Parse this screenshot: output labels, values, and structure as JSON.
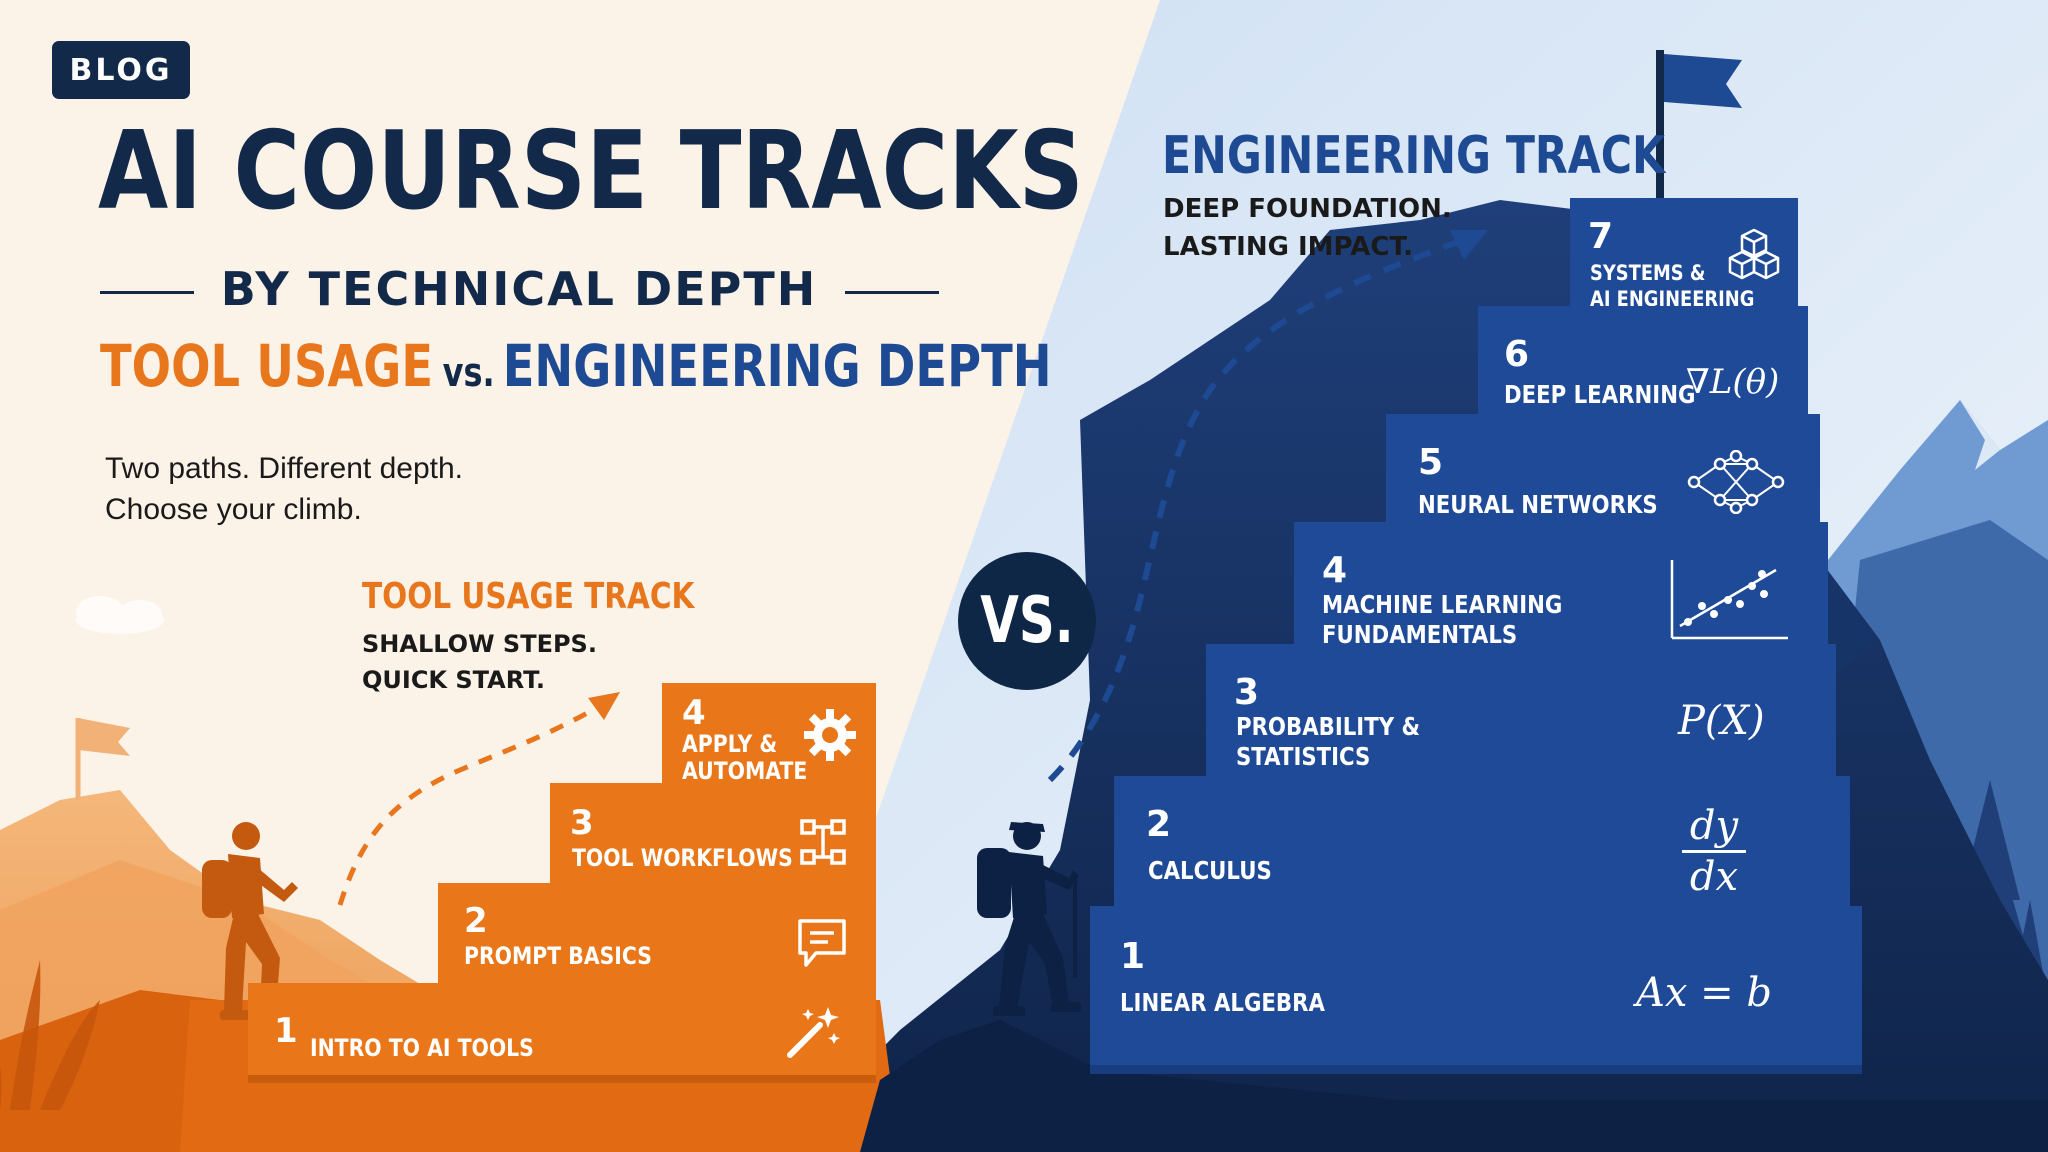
{
  "header": {
    "badge": "BLOG",
    "title": "AI COURSE TRACKS",
    "subtitle": "BY TECHNICAL DEPTH",
    "compare_left": "TOOL USAGE",
    "compare_vs": "vs.",
    "compare_right": "ENGINEERING DEPTH",
    "tagline_line1": "Two paths. Different depth.",
    "tagline_line2": "Choose your climb."
  },
  "tool_track": {
    "title": "TOOL USAGE TRACK",
    "sub_line1": "SHALLOW STEPS.",
    "sub_line2": "QUICK START.",
    "steps": [
      {
        "num": "1",
        "label": "INTRO TO AI TOOLS",
        "icon": "magic-wand-icon"
      },
      {
        "num": "2",
        "label": "PROMPT BASICS",
        "icon": "chat-bubble-icon"
      },
      {
        "num": "3",
        "label": "TOOL WORKFLOWS",
        "icon": "workflow-grid-icon"
      },
      {
        "num": "4",
        "label_line1": "APPLY &",
        "label_line2": "AUTOMATE",
        "icon": "gear-icon"
      }
    ]
  },
  "vs_badge": "VS.",
  "engineering_track": {
    "title": "ENGINEERING TRACK",
    "sub_line1": "DEEP FOUNDATION.",
    "sub_line2": "LASTING IMPACT.",
    "steps": [
      {
        "num": "1",
        "label": "LINEAR ALGEBRA",
        "formula": "Ax = b"
      },
      {
        "num": "2",
        "label": "CALCULUS",
        "formula_num": "dy",
        "formula_den": "dx"
      },
      {
        "num": "3",
        "label_line1": "PROBABILITY &",
        "label_line2": "STATISTICS",
        "formula": "P(X)"
      },
      {
        "num": "4",
        "label_line1": "MACHINE LEARNING",
        "label_line2": "FUNDAMENTALS",
        "icon": "scatter-plot-icon"
      },
      {
        "num": "5",
        "label": "NEURAL NETWORKS",
        "icon": "network-icon"
      },
      {
        "num": "6",
        "label": "DEEP LEARNING",
        "formula": "∇L(θ)"
      },
      {
        "num": "7",
        "label_line1": "SYSTEMS &",
        "label_line2": "AI ENGINEERING",
        "icon": "cubes-icon"
      }
    ]
  },
  "colors": {
    "navy": "#13294a",
    "orange": "#e8761c",
    "blue": "#1d4a92",
    "cream": "#fbf2e8",
    "sky": "#dfeaf6"
  }
}
